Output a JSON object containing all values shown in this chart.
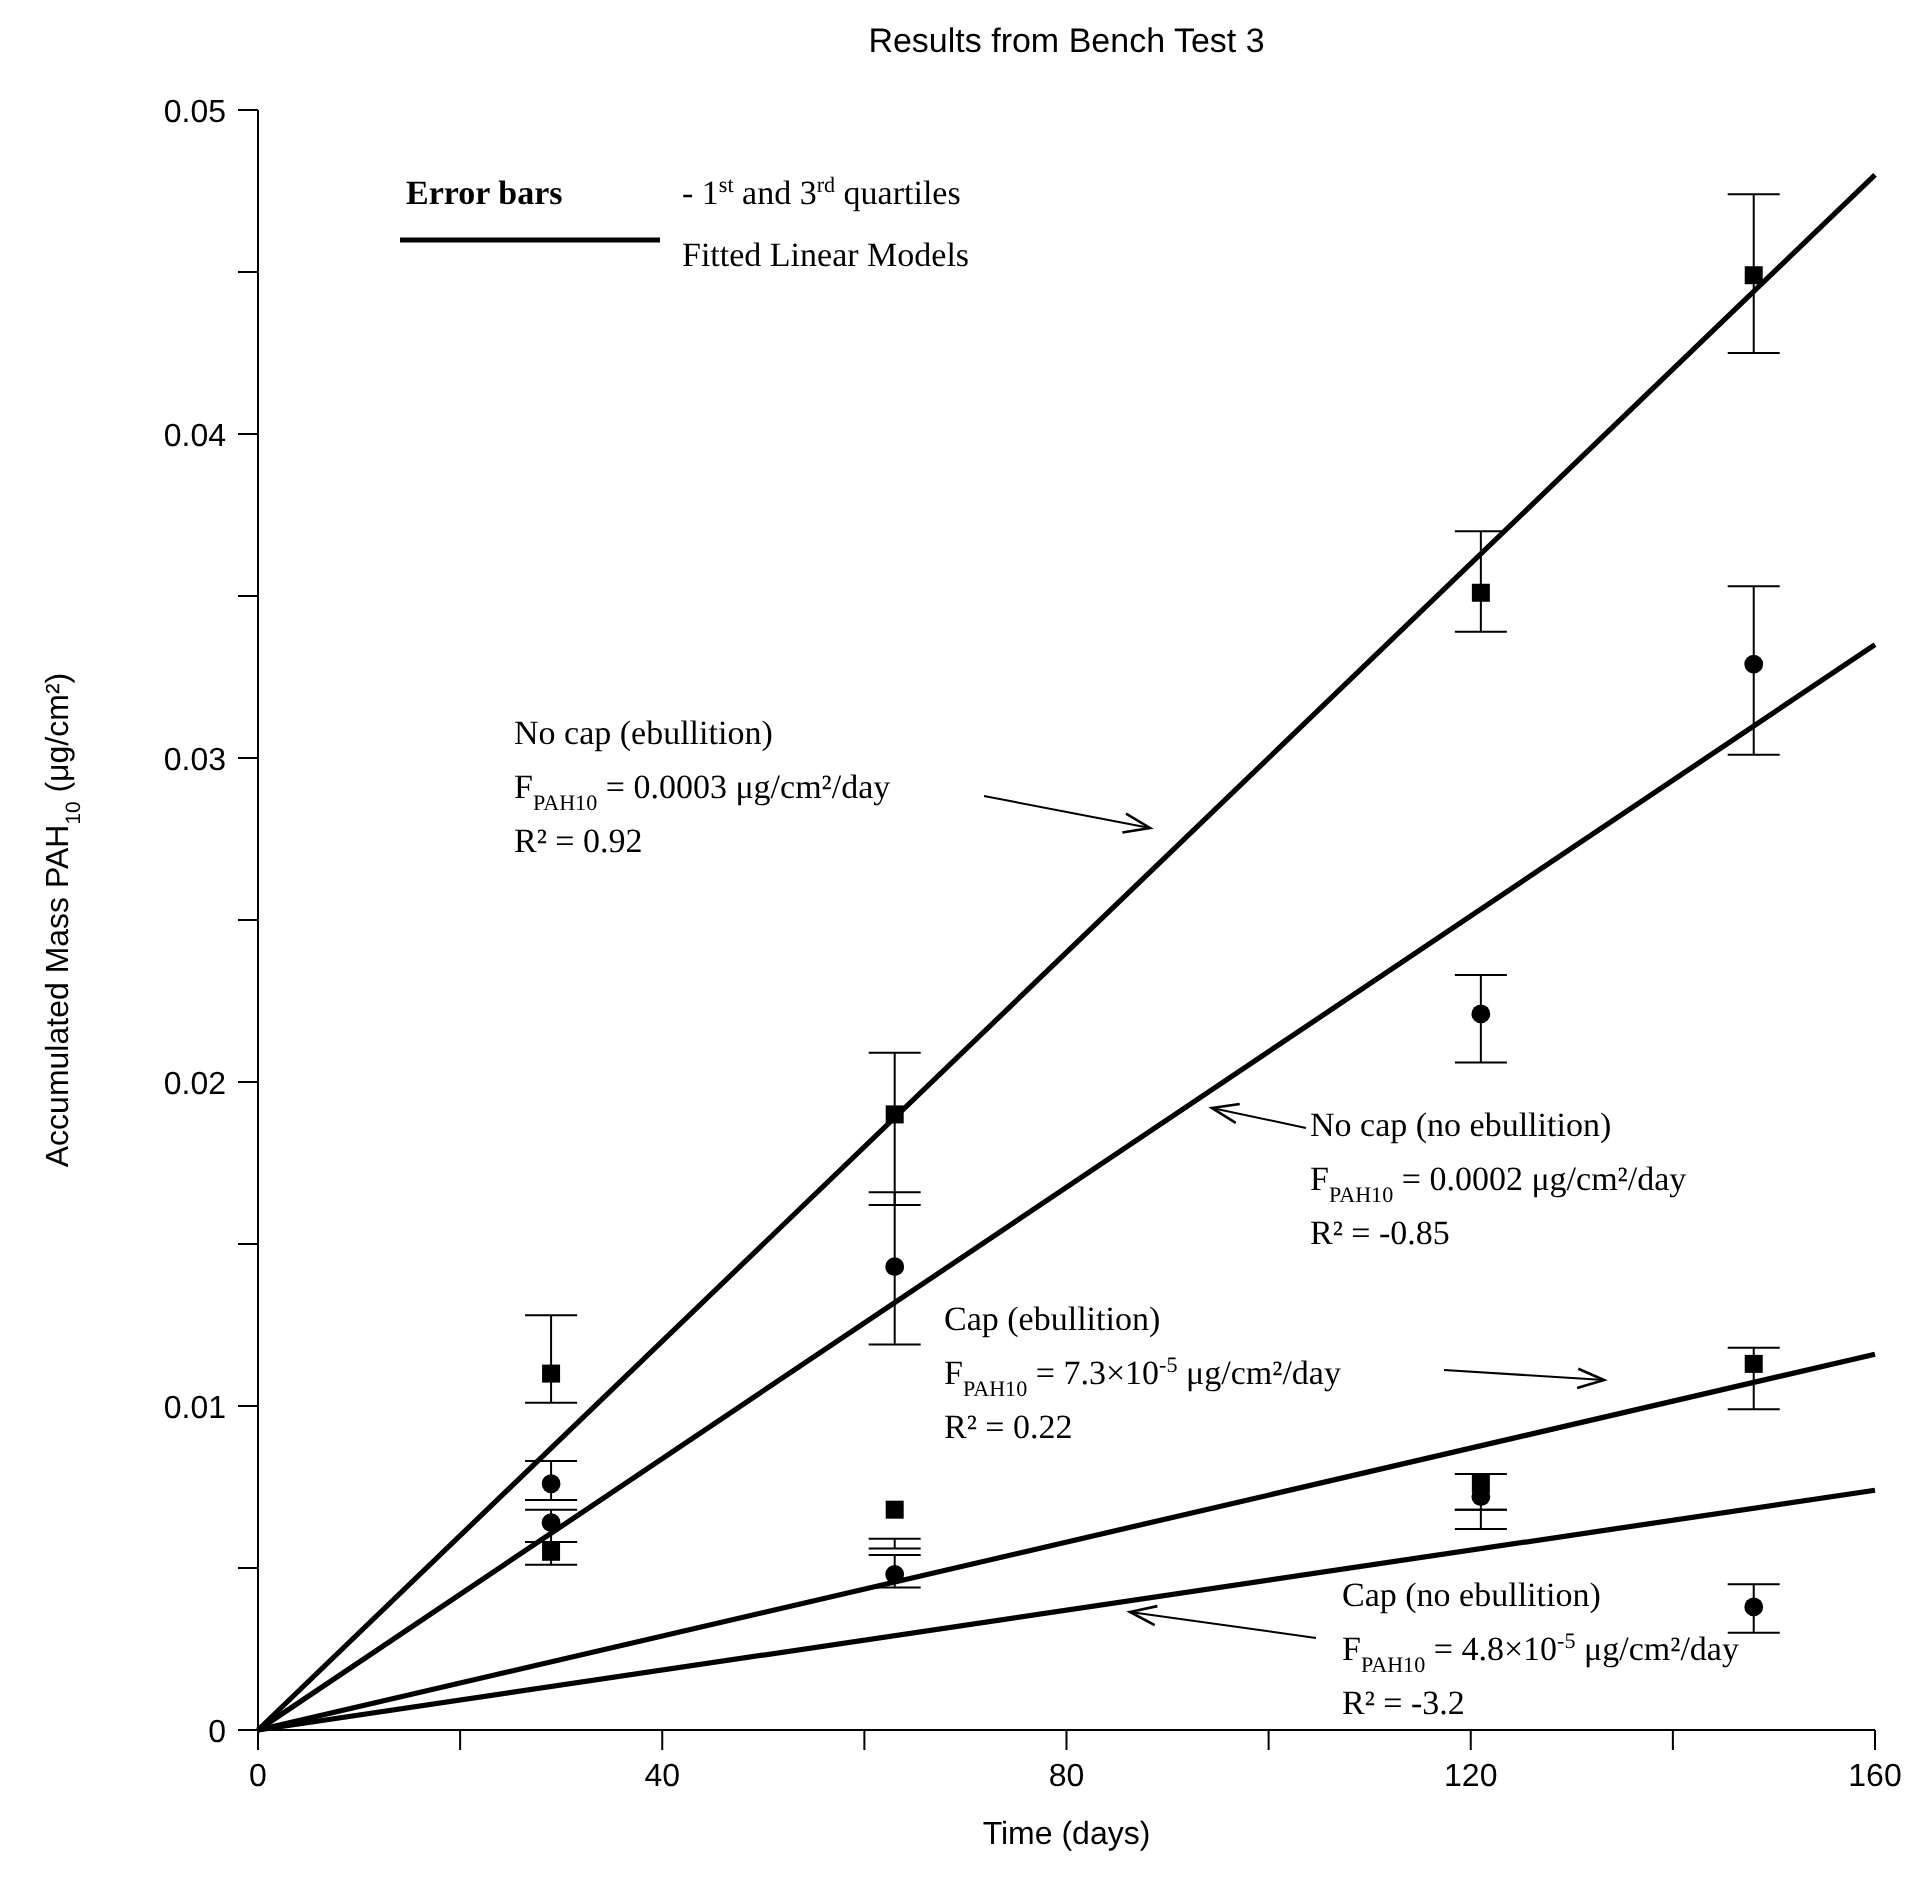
{
  "chart_data": {
    "type": "scatter",
    "title": "Results from Bench Test 3",
    "xlabel": "Time (days)",
    "ylabel": "Accumulated Mass PAH$_{10}$ (μg/cm²)",
    "xlim": [
      0,
      160
    ],
    "xticks": [
      0,
      {
        "value": 20,
        "label": null
      },
      40,
      {
        "value": 60,
        "label": null
      },
      80,
      {
        "value": 100,
        "label": null
      },
      120,
      {
        "value": 140,
        "label": null
      },
      160
    ],
    "ylim": [
      0,
      0.05
    ],
    "yticks": [
      0,
      {
        "value": 0.005,
        "label": null
      },
      0.01,
      {
        "value": 0.015,
        "label": null
      },
      0.02,
      {
        "value": 0.025,
        "label": null
      },
      0.03,
      {
        "value": 0.035,
        "label": null
      },
      0.04,
      {
        "value": 0.045,
        "label": null
      },
      0.05
    ],
    "grid": false,
    "series": [
      {
        "type": "scatter",
        "marker": "square",
        "color": "#000000",
        "x": [
          29,
          63,
          121,
          148
        ],
        "values": [
          0.011,
          0.019,
          0.0351,
          0.0449
        ],
        "errors": [
          [
            0.0101,
            0.0128
          ],
          [
            0.0162,
            0.0209
          ],
          [
            0.0339,
            0.037
          ],
          [
            0.0425,
            0.0474
          ]
        ]
      },
      {
        "type": "scatter",
        "marker": "circle",
        "color": "#000000",
        "x": [
          29,
          63,
          121,
          148
        ],
        "values": [
          0.0076,
          0.0143,
          0.0221,
          0.0329
        ],
        "errors": [
          [
            0.0071,
            0.0083
          ],
          [
            0.0119,
            0.0166
          ],
          [
            0.0206,
            0.0233
          ],
          [
            0.0301,
            0.0353
          ]
        ]
      },
      {
        "type": "scatter",
        "marker": "square",
        "color": "#000000",
        "x": [
          29,
          63,
          121,
          148
        ],
        "values": [
          0.0055,
          0.0068,
          0.0076,
          0.0113
        ],
        "errors": [
          [
            0.0051,
            0.0058
          ],
          [
            0.0056,
            0.0059
          ],
          [
            0.0068,
            0.0079
          ],
          [
            0.0099,
            0.0118
          ]
        ]
      },
      {
        "type": "scatter",
        "marker": "circle",
        "color": "#000000",
        "x": [
          29,
          63,
          121,
          148
        ],
        "values": [
          0.0064,
          0.0048,
          0.0072,
          0.0038
        ],
        "errors": [
          [
            0.0058,
            0.0068
          ],
          [
            0.0044,
            0.0054
          ],
          [
            0.0062,
            0.0068
          ],
          [
            0.003,
            0.0045
          ]
        ]
      },
      {
        "type": "line",
        "marker": "none",
        "line_style": "solid",
        "color": "#000000",
        "x": [
          0,
          160
        ],
        "values": [
          0,
          0.048
        ]
      },
      {
        "type": "line",
        "marker": "none",
        "line_style": "solid",
        "color": "#000000",
        "x": [
          0,
          160
        ],
        "values": [
          0,
          0.0335
        ]
      },
      {
        "type": "line",
        "marker": "none",
        "line_style": "solid",
        "color": "#000000",
        "x": [
          0,
          160
        ],
        "values": [
          0,
          0.0116
        ]
      },
      {
        "type": "line",
        "marker": "none",
        "line_style": "solid",
        "color": "#000000",
        "x": [
          0,
          160
        ],
        "values": [
          0,
          0.0074
        ]
      }
    ],
    "annotations": [
      "Error bars",
      "- 1$^{st}$ and 3$^{rd}$ quartiles",
      "Fitted Linear Models",
      "No cap (ebullition)\nF$_{PAH10}$ = 0.0003 μg/cm²/day\nR² = 0.92",
      "No cap (no ebullition)\nF$_{PAH10}$ = 0.0002 μg/cm²/day\nR² = -0.85",
      "Cap (ebullition)\nF$_{PAH10}$ = 7.3×10$^{-5}$ μg/cm²/day\nR² = 0.22",
      "Cap (no ebullition)\nF$_{PAH10}$ = 4.8×10$^{-5}$ μg/cm²/day\nR² = -3.2"
    ]
  }
}
